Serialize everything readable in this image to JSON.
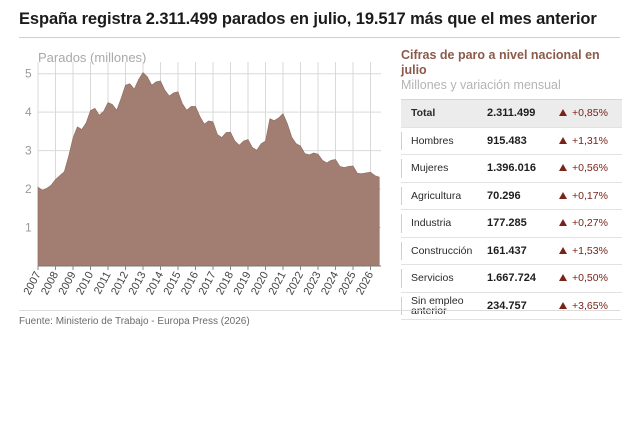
{
  "headline": "España registra 2.311.499 parados en julio, 19.517 más que el mes anterior",
  "source": "Fuente: Ministerio de Trabajo - Europa Press (2026)",
  "colors": {
    "area": "#a17e71",
    "accent_title": "#8b5a4a",
    "change": "#7a2318",
    "grid": "#d9d9d9"
  },
  "table": {
    "title": "Cifras de paro a nivel nacional en julio",
    "subtitle": "Millones y variación mensual",
    "rows": [
      {
        "label": "Total",
        "value": "2.311.499",
        "change": "+0,85%",
        "direction": "up"
      },
      {
        "label": "Hombres",
        "value": "915.483",
        "change": "+1,31%",
        "direction": "up"
      },
      {
        "label": "Mujeres",
        "value": "1.396.016",
        "change": "+0,56%",
        "direction": "up"
      },
      {
        "label": "Agricultura",
        "value": "70.296",
        "change": "+0,17%",
        "direction": "up"
      },
      {
        "label": "Industria",
        "value": "177.285",
        "change": "+0,27%",
        "direction": "up"
      },
      {
        "label": "Construcción",
        "value": "161.437",
        "change": "+1,53%",
        "direction": "up"
      },
      {
        "label": "Servicios",
        "value": "1.667.724",
        "change": "+0,50%",
        "direction": "up"
      },
      {
        "label": "Sin empleo anterior",
        "value": "234.757",
        "change": "+3,65%",
        "direction": "up"
      }
    ]
  },
  "chart_data": {
    "type": "area",
    "ylabel": "Parados (millones)",
    "ylim": [
      0,
      5.2
    ],
    "yticks": [
      "1",
      "2",
      "3",
      "4",
      "5"
    ],
    "xticks": [
      "2007",
      "2008",
      "2009",
      "2010",
      "2011",
      "2012",
      "2013",
      "2014",
      "2015",
      "2016",
      "2017",
      "2018",
      "2019",
      "2020",
      "2021",
      "2022",
      "2023",
      "2024",
      "2025",
      "2026"
    ],
    "x_range": [
      2007.0,
      2026.6
    ],
    "grid": true,
    "series": [
      {
        "points": [
          [
            2007.0,
            2.05
          ],
          [
            2007.25,
            1.97
          ],
          [
            2007.5,
            2.02
          ],
          [
            2007.75,
            2.1
          ],
          [
            2008.0,
            2.25
          ],
          [
            2008.25,
            2.35
          ],
          [
            2008.5,
            2.45
          ],
          [
            2008.75,
            2.85
          ],
          [
            2009.0,
            3.33
          ],
          [
            2009.25,
            3.62
          ],
          [
            2009.5,
            3.55
          ],
          [
            2009.75,
            3.72
          ],
          [
            2010.0,
            4.04
          ],
          [
            2010.25,
            4.1
          ],
          [
            2010.5,
            3.92
          ],
          [
            2010.75,
            4.02
          ],
          [
            2011.0,
            4.25
          ],
          [
            2011.25,
            4.2
          ],
          [
            2011.5,
            4.05
          ],
          [
            2011.75,
            4.36
          ],
          [
            2012.0,
            4.7
          ],
          [
            2012.25,
            4.74
          ],
          [
            2012.5,
            4.6
          ],
          [
            2012.75,
            4.85
          ],
          [
            2013.0,
            5.03
          ],
          [
            2013.25,
            4.92
          ],
          [
            2013.5,
            4.7
          ],
          [
            2013.75,
            4.79
          ],
          [
            2014.0,
            4.81
          ],
          [
            2014.25,
            4.57
          ],
          [
            2014.5,
            4.42
          ],
          [
            2014.75,
            4.5
          ],
          [
            2015.0,
            4.53
          ],
          [
            2015.25,
            4.22
          ],
          [
            2015.5,
            4.05
          ],
          [
            2015.75,
            4.15
          ],
          [
            2016.0,
            4.15
          ],
          [
            2016.25,
            3.89
          ],
          [
            2016.5,
            3.69
          ],
          [
            2016.75,
            3.77
          ],
          [
            2017.0,
            3.75
          ],
          [
            2017.25,
            3.42
          ],
          [
            2017.5,
            3.34
          ],
          [
            2017.75,
            3.47
          ],
          [
            2018.0,
            3.48
          ],
          [
            2018.25,
            3.25
          ],
          [
            2018.5,
            3.14
          ],
          [
            2018.75,
            3.25
          ],
          [
            2019.0,
            3.29
          ],
          [
            2019.25,
            3.08
          ],
          [
            2019.5,
            3.01
          ],
          [
            2019.75,
            3.18
          ],
          [
            2020.0,
            3.25
          ],
          [
            2020.25,
            3.83
          ],
          [
            2020.5,
            3.78
          ],
          [
            2020.75,
            3.85
          ],
          [
            2021.0,
            3.96
          ],
          [
            2021.25,
            3.7
          ],
          [
            2021.5,
            3.35
          ],
          [
            2021.75,
            3.18
          ],
          [
            2022.0,
            3.12
          ],
          [
            2022.25,
            2.92
          ],
          [
            2022.5,
            2.89
          ],
          [
            2022.75,
            2.94
          ],
          [
            2023.0,
            2.91
          ],
          [
            2023.25,
            2.75
          ],
          [
            2023.5,
            2.68
          ],
          [
            2023.75,
            2.75
          ],
          [
            2024.0,
            2.77
          ],
          [
            2024.25,
            2.59
          ],
          [
            2024.5,
            2.56
          ],
          [
            2024.75,
            2.59
          ],
          [
            2025.0,
            2.6
          ],
          [
            2025.25,
            2.41
          ],
          [
            2025.5,
            2.4
          ],
          [
            2025.75,
            2.42
          ],
          [
            2026.0,
            2.44
          ],
          [
            2026.25,
            2.35
          ],
          [
            2026.5,
            2.31
          ]
        ]
      }
    ]
  }
}
